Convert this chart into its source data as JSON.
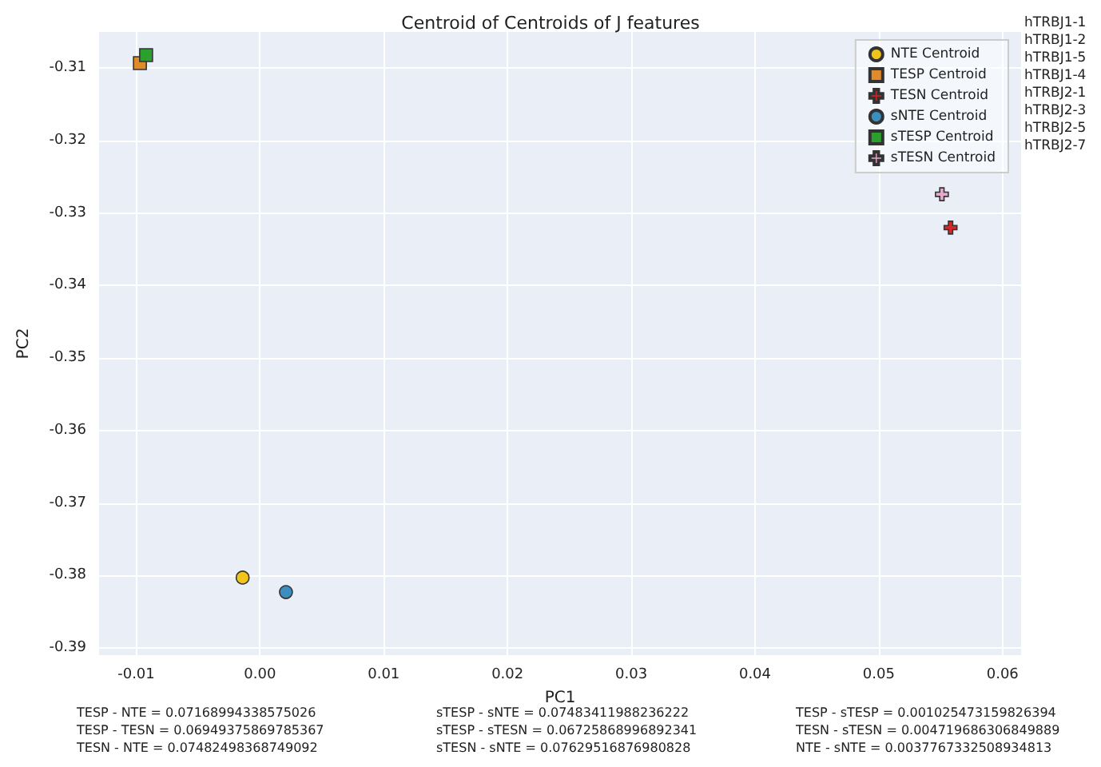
{
  "chart_data": {
    "type": "scatter",
    "title": "Centroid of Centroids of J features",
    "xlabel": "PC1",
    "ylabel": "PC2",
    "xlim": [
      -0.013,
      0.0615
    ],
    "ylim": [
      -0.391,
      -0.305
    ],
    "xticks": [
      -0.01,
      {
        "value": 0,
        "label": "0.00"
      },
      0.01,
      0.02,
      0.03,
      0.04,
      0.05,
      0.06
    ],
    "yticks": [
      -0.39,
      -0.38,
      -0.37,
      -0.36,
      -0.35,
      -0.34,
      -0.33,
      -0.32,
      -0.31
    ],
    "grid": true,
    "legend": "top right",
    "series": [
      {
        "name": "NTE Centroid",
        "color": "#f0c419",
        "marker": "circle",
        "x": [
          -0.0014
        ],
        "values": [
          -0.3803
        ]
      },
      {
        "name": "TESP Centroid",
        "color": "#e08a2a",
        "marker": "square",
        "x": [
          -0.0097
        ],
        "values": [
          -0.3093
        ]
      },
      {
        "name": "TESN Centroid",
        "color": "#d62728",
        "marker": "cross",
        "x": [
          0.0558
        ],
        "values": [
          -0.332
        ]
      },
      {
        "name": "sNTE Centroid",
        "color": "#3a8fc0",
        "marker": "circle",
        "x": [
          0.0021
        ],
        "values": [
          -0.3823
        ]
      },
      {
        "name": "sTESP Centroid",
        "color": "#2ca02c",
        "marker": "square",
        "x": [
          -0.0092
        ],
        "values": [
          -0.3082
        ]
      },
      {
        "name": "sTESN Centroid",
        "color": "#e6a8cc",
        "marker": "cross",
        "x": [
          0.0551
        ],
        "values": [
          -0.3274
        ]
      }
    ],
    "annotations": [
      "hTRBJ1-1",
      "hTRBJ1-2",
      "hTRBJ1-5",
      "hTRBJ1-4",
      "hTRBJ2-1",
      "hTRBJ2-3",
      "hTRBJ2-5",
      "hTRBJ2-7",
      "TESP - NTE = 0.07168994338575026",
      "TESP - TESN = 0.06949375869785367",
      "TESN - NTE = 0.07482498368749092",
      "sTESP - sNTE = 0.07483411988236222",
      "sTESP - sTESN = 0.06725868996892341",
      "sTESN - sNTE = 0.07629516876980828",
      "TESP - sTESP = 0.001025473159826394",
      "TESN - sTESN = 0.004719686306849889",
      "NTE - sNTE = 0.0037767332508934813"
    ]
  }
}
